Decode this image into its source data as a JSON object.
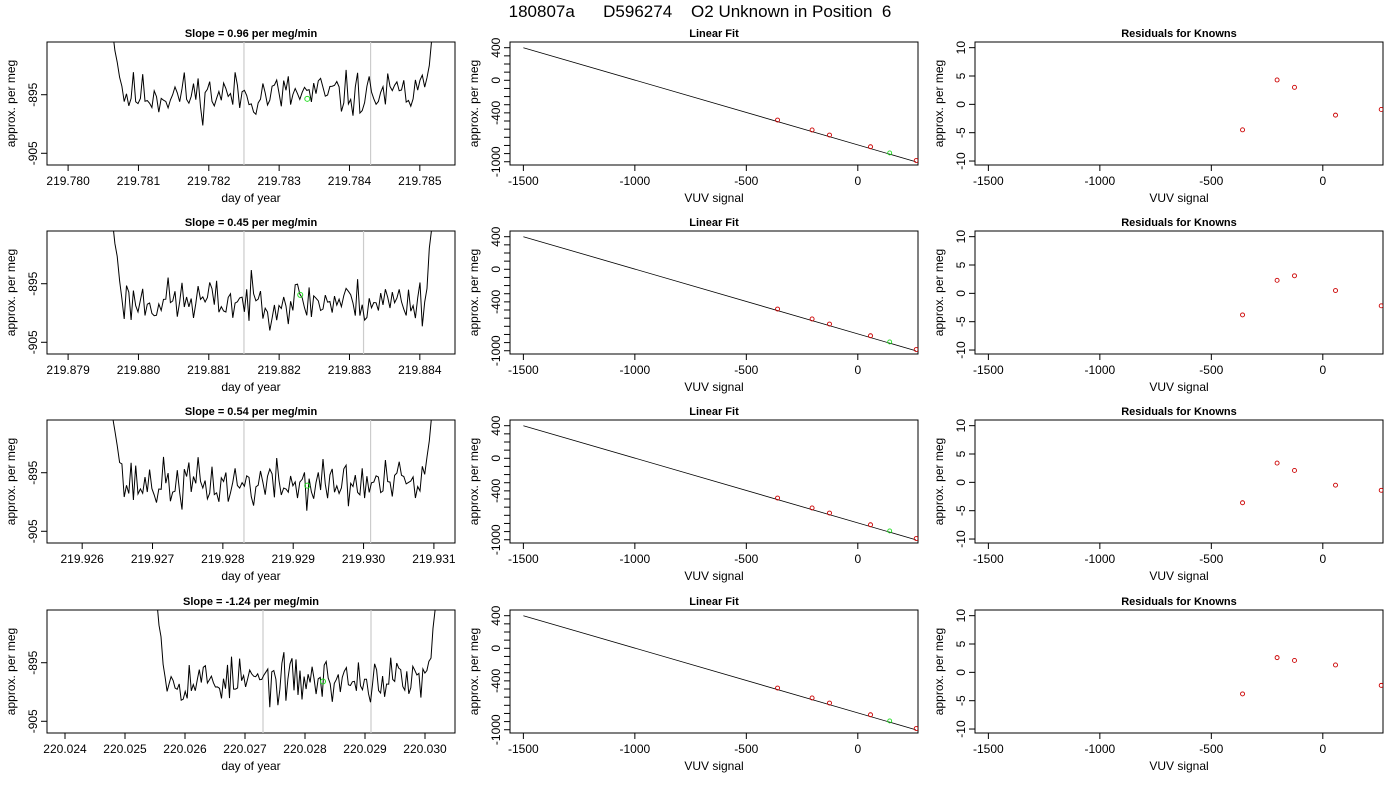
{
  "page_title": "180807a      D596274    O2 Unknown in Position  6",
  "colors": {
    "trace": "#000000",
    "marker_unknown": "#22dd22",
    "marker_known": "#cc0000",
    "vline": "#cccccc"
  },
  "chart_data": [
    {
      "type": "line",
      "row": 1,
      "title": "Slope =  0.96  per meg/min",
      "xlabel": "day of year",
      "ylabel": "approx. per meg",
      "xlim": [
        219.7797,
        219.7855
      ],
      "ylim": [
        -907,
        -886
      ],
      "xticks": [
        "219.780",
        "219.781",
        "219.782",
        "219.783",
        "219.784",
        "219.785"
      ],
      "yticks": [
        "-895",
        "-905"
      ],
      "trace": {
        "start": 219.7806,
        "end": 219.7852,
        "baseline": -895,
        "noise": 2.4,
        "seed": 11
      },
      "vlines": [
        219.7825,
        219.7843
      ],
      "marker_unknown": {
        "x": 219.7834,
        "y": -895.7
      },
      "grid": false
    },
    {
      "type": "scatter",
      "row": 1,
      "title": "Linear Fit",
      "xlabel": "VUV signal",
      "ylabel": "approx. per meg",
      "xlim": [
        -1560,
        270
      ],
      "ylim": [
        -1040,
        470
      ],
      "xticks": [
        "-1500",
        "-1000",
        "-500",
        "0"
      ],
      "yticks": [
        "400",
        "0",
        "-400",
        "-1000"
      ],
      "fit_line": {
        "x": [
          -1500,
          260
        ],
        "y": [
          400,
          -1000
        ]
      },
      "known_points": {
        "x": [
          -360,
          -205,
          -127,
          57,
          262
        ],
        "y": [
          -488,
          -610,
          -672,
          -816,
          -985
        ]
      },
      "unknown_point": {
        "x": 143,
        "y": -892
      }
    },
    {
      "type": "scatter",
      "row": 1,
      "title": "Residuals for Knowns",
      "xlabel": "VUV signal",
      "ylabel": "approx. per meg",
      "xlim": [
        -1560,
        270
      ],
      "ylim": [
        -10.7,
        11
      ],
      "xticks": [
        "-1500",
        "-1000",
        "-500",
        "0"
      ],
      "yticks": [
        "10",
        "5",
        "0",
        "-5",
        "-10"
      ],
      "points": {
        "x": [
          -360,
          -205,
          -127,
          57,
          262
        ],
        "y": [
          -4.5,
          4.3,
          3.0,
          -1.9,
          -0.9
        ]
      }
    },
    {
      "type": "line",
      "row": 2,
      "title": "Slope =  0.45  per meg/min",
      "xlabel": "day of year",
      "ylabel": "approx. per meg",
      "xlim": [
        219.8787,
        219.8845
      ],
      "ylim": [
        -907,
        -886
      ],
      "xticks": [
        "219.879",
        "219.880",
        "219.881",
        "219.882",
        "219.883",
        "219.884"
      ],
      "yticks": [
        "-895",
        "-905"
      ],
      "trace": {
        "start": 219.8796,
        "end": 219.8842,
        "baseline": -898,
        "noise": 2.4,
        "seed": 23
      },
      "vlines": [
        219.8815,
        219.8832
      ],
      "marker_unknown": {
        "x": 219.8823,
        "y": -896.9
      },
      "grid": false
    },
    {
      "type": "scatter",
      "row": 2,
      "title": "Linear Fit",
      "xlabel": "VUV signal",
      "ylabel": "approx. per meg",
      "xlim": [
        -1560,
        270
      ],
      "ylim": [
        -1040,
        470
      ],
      "xticks": [
        "-1500",
        "-1000",
        "-500",
        "0"
      ],
      "yticks": [
        "400",
        "0",
        "-400",
        "-1000"
      ],
      "fit_line": {
        "x": [
          -1500,
          260
        ],
        "y": [
          400,
          -1000
        ]
      },
      "known_points": {
        "x": [
          -360,
          -205,
          -127,
          57,
          262
        ],
        "y": [
          -488,
          -610,
          -672,
          -816,
          -985
        ]
      },
      "unknown_point": {
        "x": 143,
        "y": -892
      }
    },
    {
      "type": "scatter",
      "row": 2,
      "title": "Residuals for Knowns",
      "xlabel": "VUV signal",
      "ylabel": "approx. per meg",
      "xlim": [
        -1560,
        270
      ],
      "ylim": [
        -10.7,
        11
      ],
      "xticks": [
        "-1500",
        "-1000",
        "-500",
        "0"
      ],
      "yticks": [
        "10",
        "5",
        "0",
        "-5",
        "-10"
      ],
      "points": {
        "x": [
          -360,
          -205,
          -127,
          57,
          262
        ],
        "y": [
          -3.8,
          2.3,
          3.1,
          0.5,
          -2.2
        ]
      }
    },
    {
      "type": "line",
      "row": 3,
      "title": "Slope =  0.54  per meg/min",
      "xlabel": "day of year",
      "ylabel": "approx. per meg",
      "xlim": [
        219.9255,
        219.9313
      ],
      "ylim": [
        -907,
        -886
      ],
      "xticks": [
        "219.926",
        "219.927",
        "219.928",
        "219.929",
        "219.930",
        "219.931"
      ],
      "yticks": [
        "-895",
        "-905"
      ],
      "trace": {
        "start": 219.9264,
        "end": 219.931,
        "baseline": -897,
        "noise": 2.6,
        "seed": 37
      },
      "vlines": [
        219.9283,
        219.9301
      ],
      "marker_unknown": {
        "x": 219.9292,
        "y": -897.2
      },
      "grid": false
    },
    {
      "type": "scatter",
      "row": 3,
      "title": "Linear Fit",
      "xlabel": "VUV signal",
      "ylabel": "approx. per meg",
      "xlim": [
        -1560,
        270
      ],
      "ylim": [
        -1040,
        470
      ],
      "xticks": [
        "-1500",
        "-1000",
        "-500",
        "0"
      ],
      "yticks": [
        "400",
        "0",
        "-400",
        "-1000"
      ],
      "fit_line": {
        "x": [
          -1500,
          260
        ],
        "y": [
          400,
          -1000
        ]
      },
      "known_points": {
        "x": [
          -360,
          -205,
          -127,
          57,
          262
        ],
        "y": [
          -488,
          -610,
          -672,
          -816,
          -985
        ]
      },
      "unknown_point": {
        "x": 143,
        "y": -892
      }
    },
    {
      "type": "scatter",
      "row": 3,
      "title": "Residuals for Knowns",
      "xlabel": "VUV signal",
      "ylabel": "approx. per meg",
      "xlim": [
        -1560,
        270
      ],
      "ylim": [
        -10.7,
        11
      ],
      "xticks": [
        "-1500",
        "-1000",
        "-500",
        "0"
      ],
      "yticks": [
        "10",
        "5",
        "0",
        "-5",
        "-10"
      ],
      "points": {
        "x": [
          -360,
          -205,
          -127,
          57,
          262
        ],
        "y": [
          -3.6,
          3.4,
          2.1,
          -0.5,
          -1.4
        ]
      }
    },
    {
      "type": "line",
      "row": 4,
      "title": "Slope =  -1.24  per meg/min",
      "xlabel": "day of year",
      "ylabel": "approx. per meg",
      "xlim": [
        220.0237,
        220.0305
      ],
      "ylim": [
        -907,
        -886
      ],
      "xticks": [
        "220.024",
        "220.025",
        "220.026",
        "220.027",
        "220.028",
        "220.029",
        "220.030"
      ],
      "yticks": [
        "-895",
        "-905"
      ],
      "trace": {
        "start": 220.0255,
        "end": 220.0302,
        "baseline": -898,
        "noise": 2.4,
        "seed": 53
      },
      "vlines": [
        220.0273,
        220.0291
      ],
      "marker_unknown": {
        "x": 220.0283,
        "y": -898.2
      },
      "grid": false
    },
    {
      "type": "scatter",
      "row": 4,
      "title": "Linear Fit",
      "xlabel": "VUV signal",
      "ylabel": "approx. per meg",
      "xlim": [
        -1560,
        270
      ],
      "ylim": [
        -1040,
        470
      ],
      "xticks": [
        "-1500",
        "-1000",
        "-500",
        "0"
      ],
      "yticks": [
        "400",
        "0",
        "-400",
        "-1000"
      ],
      "fit_line": {
        "x": [
          -1500,
          260
        ],
        "y": [
          400,
          -1000
        ]
      },
      "known_points": {
        "x": [
          -360,
          -205,
          -127,
          57,
          262
        ],
        "y": [
          -488,
          -610,
          -672,
          -816,
          -985
        ]
      },
      "unknown_point": {
        "x": 143,
        "y": -892
      }
    },
    {
      "type": "scatter",
      "row": 4,
      "title": "Residuals for Knowns",
      "xlabel": "VUV signal",
      "ylabel": "approx. per meg",
      "xlim": [
        -1560,
        270
      ],
      "ylim": [
        -10.7,
        11
      ],
      "xticks": [
        "-1500",
        "-1000",
        "-500",
        "0"
      ],
      "yticks": [
        "10",
        "5",
        "0",
        "-5",
        "-10"
      ],
      "points": {
        "x": [
          -360,
          -205,
          -127,
          57,
          262
        ],
        "y": [
          -3.8,
          2.6,
          2.1,
          1.3,
          -2.3
        ]
      }
    }
  ]
}
